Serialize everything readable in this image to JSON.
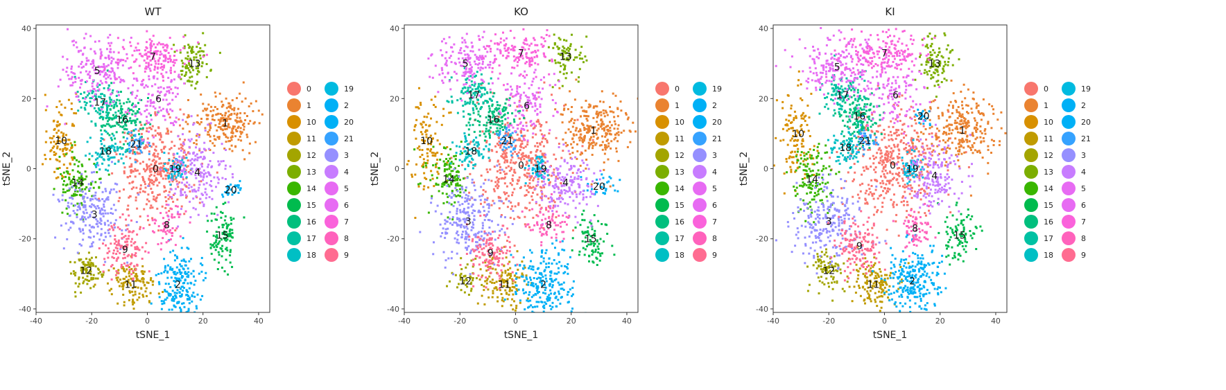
{
  "colors": [
    "#F8766D",
    "#EA8331",
    "#D89000",
    "#C09B00",
    "#A3A500",
    "#7CAE00",
    "#39B600",
    "#00BB4E",
    "#00BF7D",
    "#00C1A3",
    "#00BFC4",
    "#00BAE0",
    "#00B0F6",
    "#35A2FF",
    "#9590FF",
    "#C77CFF",
    "#E76BF3",
    "#FA62DB",
    "#FF62BC",
    "#FF6C91"
  ],
  "chart_data": [
    {
      "type": "scatter",
      "title": "WT",
      "xlabel": "tSNE_1",
      "ylabel": "tSNE_2",
      "xlim": [
        -40,
        44
      ],
      "ylim": [
        -41,
        41
      ],
      "xticks": [
        -40,
        -20,
        0,
        20,
        40
      ],
      "yticks": [
        -40,
        -20,
        0,
        20,
        40
      ],
      "grid": false,
      "legend": {
        "placement": "right",
        "col1": [
          "0",
          "1",
          "10",
          "11",
          "12",
          "13",
          "14",
          "15",
          "16",
          "17",
          "18"
        ],
        "col2": [
          "19",
          "2",
          "20",
          "21",
          "3",
          "4",
          "5",
          "6",
          "7",
          "8",
          "9"
        ]
      },
      "clusters": [
        {
          "label": "0",
          "x": 3,
          "y": 0,
          "sx": 7,
          "sy": 7,
          "n": 380,
          "color": "#F8766D"
        },
        {
          "label": "1",
          "x": 28,
          "y": 13,
          "sx": 6,
          "sy": 4,
          "n": 220,
          "color": "#EA8331"
        },
        {
          "label": "10",
          "x": -31,
          "y": 8,
          "sx": 3,
          "sy": 6,
          "n": 110,
          "color": "#D89000"
        },
        {
          "label": "11",
          "x": -6,
          "y": -33,
          "sx": 4,
          "sy": 3,
          "n": 120,
          "color": "#C09B00"
        },
        {
          "label": "12",
          "x": -22,
          "y": -29,
          "sx": 3,
          "sy": 3,
          "n": 90,
          "color": "#A3A500"
        },
        {
          "label": "13",
          "x": 17,
          "y": 30,
          "sx": 3,
          "sy": 3.5,
          "n": 90,
          "color": "#7CAE00"
        },
        {
          "label": "14",
          "x": -25,
          "y": -4,
          "sx": 3.5,
          "sy": 4,
          "n": 110,
          "color": "#39B600"
        },
        {
          "label": "15",
          "x": 27,
          "y": -19,
          "sx": 2.5,
          "sy": 4,
          "n": 100,
          "color": "#00BB4E"
        },
        {
          "label": "16",
          "x": -9,
          "y": 14,
          "sx": 4,
          "sy": 4,
          "n": 150,
          "color": "#00BF7D"
        },
        {
          "label": "17",
          "x": -17,
          "y": 19,
          "sx": 4,
          "sy": 3,
          "n": 90,
          "color": "#00C1A3"
        },
        {
          "label": "18",
          "x": -15,
          "y": 5,
          "sx": 3,
          "sy": 2.5,
          "n": 80,
          "color": "#00BFC4"
        },
        {
          "label": "19",
          "x": 10,
          "y": 0,
          "sx": 2,
          "sy": 2,
          "n": 60,
          "color": "#00BAE0"
        },
        {
          "label": "2",
          "x": 11,
          "y": -33,
          "sx": 4,
          "sy": 5,
          "n": 200,
          "color": "#00B0F6"
        },
        {
          "label": "20",
          "x": 30,
          "y": -6,
          "sx": 3,
          "sy": 1.5,
          "n": 30,
          "color": "#00B0F6"
        },
        {
          "label": "21",
          "x": -4,
          "y": 7,
          "sx": 2,
          "sy": 2,
          "n": 40,
          "color": "#35A2FF"
        },
        {
          "label": "3",
          "x": -19,
          "y": -13,
          "sx": 6,
          "sy": 5,
          "n": 200,
          "color": "#9590FF"
        },
        {
          "label": "4",
          "x": 18,
          "y": -1,
          "sx": 5,
          "sy": 6,
          "n": 190,
          "color": "#C77CFF"
        },
        {
          "label": "5",
          "x": -18,
          "y": 28,
          "sx": 7,
          "sy": 5,
          "n": 200,
          "color": "#E76BF3"
        },
        {
          "label": "6",
          "x": 4,
          "y": 20,
          "sx": 5,
          "sy": 5,
          "n": 120,
          "color": "#E76BF3"
        },
        {
          "label": "7",
          "x": 2,
          "y": 32,
          "sx": 7,
          "sy": 3,
          "n": 150,
          "color": "#FA62DB"
        },
        {
          "label": "8",
          "x": 7,
          "y": -16,
          "sx": 3,
          "sy": 3,
          "n": 60,
          "color": "#FF62BC"
        },
        {
          "label": "9",
          "x": -8,
          "y": -23,
          "sx": 4,
          "sy": 4,
          "n": 130,
          "color": "#FF6C91"
        }
      ]
    },
    {
      "type": "scatter",
      "title": "KO",
      "xlabel": "tSNE_1",
      "ylabel": "tSNE_2",
      "xlim": [
        -40,
        44
      ],
      "ylim": [
        -41,
        41
      ],
      "xticks": [
        -40,
        -20,
        0,
        20,
        40
      ],
      "yticks": [
        -40,
        -20,
        0,
        20,
        40
      ],
      "grid": false,
      "legend": {
        "placement": "right",
        "col1": [
          "0",
          "1",
          "10",
          "11",
          "12",
          "13",
          "14",
          "15",
          "16",
          "17",
          "18"
        ],
        "col2": [
          "19",
          "2",
          "20",
          "21",
          "3",
          "4",
          "5",
          "6",
          "7",
          "8",
          "9"
        ]
      },
      "clusters": [
        {
          "label": "0",
          "x": 2,
          "y": 1,
          "sx": 8,
          "sy": 8,
          "n": 420,
          "color": "#F8766D"
        },
        {
          "label": "1",
          "x": 28,
          "y": 11,
          "sx": 6,
          "sy": 5,
          "n": 250,
          "color": "#EA8331"
        },
        {
          "label": "10",
          "x": -32,
          "y": 8,
          "sx": 3,
          "sy": 7,
          "n": 110,
          "color": "#D89000"
        },
        {
          "label": "11",
          "x": -4,
          "y": -33,
          "sx": 4,
          "sy": 3.5,
          "n": 130,
          "color": "#C09B00"
        },
        {
          "label": "12",
          "x": -18,
          "y": -32,
          "sx": 3,
          "sy": 2.5,
          "n": 40,
          "color": "#A3A500"
        },
        {
          "label": "13",
          "x": 18,
          "y": 32,
          "sx": 3,
          "sy": 3.5,
          "n": 80,
          "color": "#7CAE00"
        },
        {
          "label": "14",
          "x": -24,
          "y": -3,
          "sx": 4,
          "sy": 4,
          "n": 120,
          "color": "#39B600"
        },
        {
          "label": "15",
          "x": 27,
          "y": -20,
          "sx": 2.5,
          "sy": 4,
          "n": 80,
          "color": "#00BB4E"
        },
        {
          "label": "16",
          "x": -8,
          "y": 14,
          "sx": 4,
          "sy": 3.5,
          "n": 130,
          "color": "#00BF7D"
        },
        {
          "label": "17",
          "x": -15,
          "y": 21,
          "sx": 4,
          "sy": 3,
          "n": 100,
          "color": "#00C1A3"
        },
        {
          "label": "18",
          "x": -16,
          "y": 5,
          "sx": 3,
          "sy": 2.5,
          "n": 70,
          "color": "#00BFC4"
        },
        {
          "label": "19",
          "x": 9,
          "y": 0,
          "sx": 2,
          "sy": 2,
          "n": 50,
          "color": "#00BAE0"
        },
        {
          "label": "2",
          "x": 10,
          "y": -33,
          "sx": 5,
          "sy": 5,
          "n": 230,
          "color": "#00B0F6"
        },
        {
          "label": "20",
          "x": 30,
          "y": -5,
          "sx": 3,
          "sy": 1.5,
          "n": 30,
          "color": "#00B0F6"
        },
        {
          "label": "21",
          "x": -3,
          "y": 8,
          "sx": 2,
          "sy": 2,
          "n": 40,
          "color": "#35A2FF"
        },
        {
          "label": "3",
          "x": -17,
          "y": -15,
          "sx": 6,
          "sy": 6,
          "n": 240,
          "color": "#9590FF"
        },
        {
          "label": "4",
          "x": 18,
          "y": -4,
          "sx": 5,
          "sy": 4,
          "n": 170,
          "color": "#C77CFF"
        },
        {
          "label": "5",
          "x": -18,
          "y": 30,
          "sx": 6,
          "sy": 4,
          "n": 160,
          "color": "#E76BF3"
        },
        {
          "label": "6",
          "x": 4,
          "y": 18,
          "sx": 5,
          "sy": 5,
          "n": 120,
          "color": "#E76BF3"
        },
        {
          "label": "7",
          "x": 2,
          "y": 33,
          "sx": 6,
          "sy": 3,
          "n": 140,
          "color": "#FA62DB"
        },
        {
          "label": "8",
          "x": 12,
          "y": -16,
          "sx": 4,
          "sy": 3,
          "n": 70,
          "color": "#FF62BC"
        },
        {
          "label": "9",
          "x": -9,
          "y": -24,
          "sx": 4,
          "sy": 4,
          "n": 130,
          "color": "#FF6C91"
        }
      ]
    },
    {
      "type": "scatter",
      "title": "KI",
      "xlabel": "tSNE_1",
      "ylabel": "tSNE_2",
      "xlim": [
        -40,
        44
      ],
      "ylim": [
        -41,
        41
      ],
      "xticks": [
        -40,
        -20,
        0,
        20,
        40
      ],
      "yticks": [
        -40,
        -20,
        0,
        20,
        40
      ],
      "grid": false,
      "legend": {
        "placement": "right",
        "col1": [
          "0",
          "1",
          "10",
          "11",
          "12",
          "13",
          "14",
          "15",
          "16",
          "17",
          "18"
        ],
        "col2": [
          "19",
          "2",
          "20",
          "21",
          "3",
          "4",
          "5",
          "6",
          "7",
          "8",
          "9"
        ]
      },
      "clusters": [
        {
          "label": "0",
          "x": 3,
          "y": 1,
          "sx": 8,
          "sy": 8,
          "n": 420,
          "color": "#F8766D"
        },
        {
          "label": "1",
          "x": 28,
          "y": 11,
          "sx": 6,
          "sy": 5,
          "n": 260,
          "color": "#EA8331"
        },
        {
          "label": "10",
          "x": -31,
          "y": 10,
          "sx": 3,
          "sy": 7,
          "n": 120,
          "color": "#D89000"
        },
        {
          "label": "11",
          "x": -4,
          "y": -33,
          "sx": 4,
          "sy": 4,
          "n": 140,
          "color": "#C09B00"
        },
        {
          "label": "12",
          "x": -20,
          "y": -29,
          "sx": 3,
          "sy": 3,
          "n": 80,
          "color": "#A3A500"
        },
        {
          "label": "13",
          "x": 18,
          "y": 30,
          "sx": 3,
          "sy": 4,
          "n": 100,
          "color": "#7CAE00"
        },
        {
          "label": "14",
          "x": -26,
          "y": -3,
          "sx": 4,
          "sy": 5,
          "n": 130,
          "color": "#39B600"
        },
        {
          "label": "15",
          "x": 27,
          "y": -19,
          "sx": 3,
          "sy": 4,
          "n": 90,
          "color": "#00BB4E"
        },
        {
          "label": "16",
          "x": -9,
          "y": 15,
          "sx": 4,
          "sy": 4,
          "n": 150,
          "color": "#00BF7D"
        },
        {
          "label": "17",
          "x": -15,
          "y": 21,
          "sx": 4,
          "sy": 3,
          "n": 100,
          "color": "#00C1A3"
        },
        {
          "label": "18",
          "x": -14,
          "y": 6,
          "sx": 3,
          "sy": 2.5,
          "n": 70,
          "color": "#00BFC4"
        },
        {
          "label": "19",
          "x": 10,
          "y": 0,
          "sx": 2,
          "sy": 2,
          "n": 60,
          "color": "#00BAE0"
        },
        {
          "label": "2",
          "x": 10,
          "y": -32,
          "sx": 5,
          "sy": 5,
          "n": 250,
          "color": "#00B0F6"
        },
        {
          "label": "20",
          "x": 14,
          "y": 15,
          "sx": 1.5,
          "sy": 1.5,
          "n": 20,
          "color": "#00B0F6"
        },
        {
          "label": "21",
          "x": -7,
          "y": 8,
          "sx": 2,
          "sy": 2,
          "n": 40,
          "color": "#35A2FF"
        },
        {
          "label": "3",
          "x": -20,
          "y": -15,
          "sx": 6,
          "sy": 6,
          "n": 230,
          "color": "#9590FF"
        },
        {
          "label": "4",
          "x": 18,
          "y": -2,
          "sx": 5,
          "sy": 5,
          "n": 170,
          "color": "#C77CFF"
        },
        {
          "label": "5",
          "x": -17,
          "y": 29,
          "sx": 7,
          "sy": 5,
          "n": 220,
          "color": "#E76BF3"
        },
        {
          "label": "6",
          "x": 4,
          "y": 21,
          "sx": 5,
          "sy": 5,
          "n": 120,
          "color": "#E76BF3"
        },
        {
          "label": "7",
          "x": 0,
          "y": 33,
          "sx": 7,
          "sy": 3,
          "n": 170,
          "color": "#FA62DB"
        },
        {
          "label": "8",
          "x": 11,
          "y": -17,
          "sx": 3,
          "sy": 3,
          "n": 70,
          "color": "#FF62BC"
        },
        {
          "label": "9",
          "x": -9,
          "y": -22,
          "sx": 4,
          "sy": 4,
          "n": 140,
          "color": "#FF6C91"
        }
      ]
    }
  ]
}
